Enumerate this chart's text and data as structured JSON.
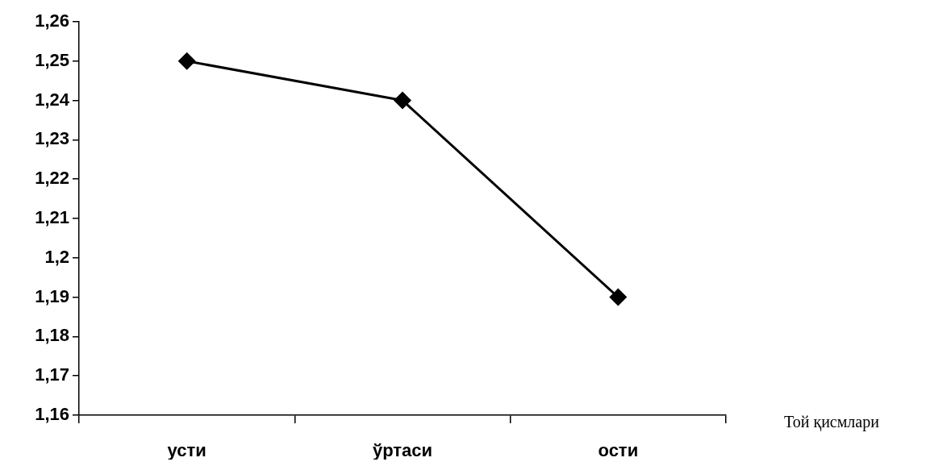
{
  "chart_data": {
    "type": "line",
    "xlabel": "Той қисмлари",
    "categories": [
      "усти",
      "ўртаси",
      "ости"
    ],
    "series": [
      {
        "color": "#000000",
        "values": [
          1.25,
          1.24,
          1.19
        ]
      }
    ],
    "ylim": [
      1.16,
      1.26
    ],
    "yticks": [
      {
        "value": 1.16,
        "label": "1,16"
      },
      {
        "value": 1.17,
        "label": "1,17"
      },
      {
        "value": 1.18,
        "label": "1,18"
      },
      {
        "value": 1.19,
        "label": "1,19"
      },
      {
        "value": 1.2,
        "label": "1,2"
      },
      {
        "value": 1.21,
        "label": "1,21"
      },
      {
        "value": 1.22,
        "label": "1,22"
      },
      {
        "value": 1.23,
        "label": "1,23"
      },
      {
        "value": 1.24,
        "label": "1,24"
      },
      {
        "value": 1.25,
        "label": "1,25"
      },
      {
        "value": 1.26,
        "label": "1,26"
      }
    ],
    "grid": false,
    "legend": false,
    "marker": "diamond",
    "line_style": "solid"
  }
}
